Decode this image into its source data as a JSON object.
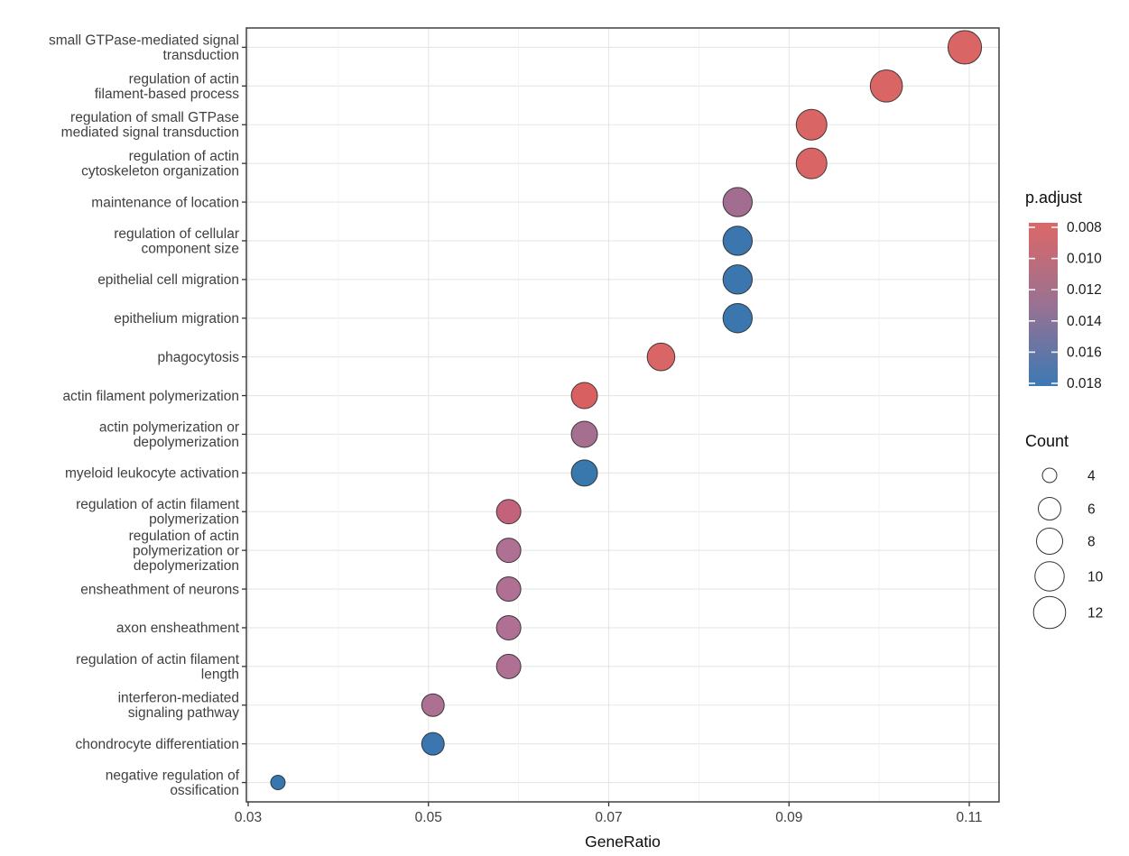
{
  "chart_data": {
    "type": "scatter",
    "title": "",
    "xlabel": "GeneRatio",
    "ylabel": "",
    "grid": true,
    "x_axis": {
      "min": 0.0298,
      "max": 0.1133,
      "major_ticks": [
        0.03,
        0.05,
        0.07,
        0.09,
        0.11
      ],
      "major_tick_labels": [
        "0.03",
        "0.05",
        "0.07",
        "0.09",
        "0.11"
      ],
      "minor_ticks": [
        0.04,
        0.06,
        0.08,
        0.1
      ]
    },
    "points": [
      {
        "category": "small GTPase-mediated signal transduction",
        "label_lines": [
          "small GTPase-mediated signal",
          "transduction"
        ],
        "gene_ratio": 0.1095,
        "count": 13,
        "p_adjust": 0.008,
        "color": "#D96565"
      },
      {
        "category": "regulation of actin filament-based process",
        "label_lines": [
          "regulation of actin",
          "filament-based process"
        ],
        "gene_ratio": 0.1008,
        "count": 12,
        "p_adjust": 0.008,
        "color": "#D96565"
      },
      {
        "category": "regulation of small GTPase mediated signal transduction",
        "label_lines": [
          "regulation of small GTPase",
          "mediated signal transduction"
        ],
        "gene_ratio": 0.0925,
        "count": 11,
        "p_adjust": 0.008,
        "color": "#D96565"
      },
      {
        "category": "regulation of actin cytoskeleton organization",
        "label_lines": [
          "regulation of actin",
          "cytoskeleton organization"
        ],
        "gene_ratio": 0.0925,
        "count": 11,
        "p_adjust": 0.008,
        "color": "#D96565"
      },
      {
        "category": "maintenance of location",
        "label_lines": [
          "maintenance of location"
        ],
        "gene_ratio": 0.0843,
        "count": 10,
        "p_adjust": 0.014,
        "color": "#A26D90"
      },
      {
        "category": "regulation of cellular component size",
        "label_lines": [
          "regulation of cellular",
          "component size"
        ],
        "gene_ratio": 0.0843,
        "count": 10,
        "p_adjust": 0.017,
        "color": "#3B76AF"
      },
      {
        "category": "epithelial cell migration",
        "label_lines": [
          "epithelial cell migration"
        ],
        "gene_ratio": 0.0843,
        "count": 10,
        "p_adjust": 0.017,
        "color": "#3B76AF"
      },
      {
        "category": "epithelium migration",
        "label_lines": [
          "epithelium migration"
        ],
        "gene_ratio": 0.0843,
        "count": 10,
        "p_adjust": 0.017,
        "color": "#3B76AF"
      },
      {
        "category": "phagocytosis",
        "label_lines": [
          "phagocytosis"
        ],
        "gene_ratio": 0.0758,
        "count": 9,
        "p_adjust": 0.009,
        "color": "#D96567"
      },
      {
        "category": "actin filament polymerization",
        "label_lines": [
          "actin filament polymerization"
        ],
        "gene_ratio": 0.0673,
        "count": 8,
        "p_adjust": 0.009,
        "color": "#D96060"
      },
      {
        "category": "actin polymerization or depolymerization",
        "label_lines": [
          "actin polymerization or",
          "depolymerization"
        ],
        "gene_ratio": 0.0673,
        "count": 8,
        "p_adjust": 0.013,
        "color": "#A66F90"
      },
      {
        "category": "myeloid leukocyte activation",
        "label_lines": [
          "myeloid leukocyte activation"
        ],
        "gene_ratio": 0.0673,
        "count": 8,
        "p_adjust": 0.017,
        "color": "#3878AD"
      },
      {
        "category": "regulation of actin filament polymerization",
        "label_lines": [
          "regulation of actin filament",
          "polymerization"
        ],
        "gene_ratio": 0.0589,
        "count": 7,
        "p_adjust": 0.011,
        "color": "#C3637B"
      },
      {
        "category": "regulation of actin polymerization or depolymerization",
        "label_lines": [
          "regulation of actin",
          "polymerization or",
          "depolymerization"
        ],
        "gene_ratio": 0.0589,
        "count": 7,
        "p_adjust": 0.013,
        "color": "#AF7093"
      },
      {
        "category": "ensheathment of neurons",
        "label_lines": [
          "ensheathment of neurons"
        ],
        "gene_ratio": 0.0589,
        "count": 7,
        "p_adjust": 0.013,
        "color": "#AF7093"
      },
      {
        "category": "axon ensheathment",
        "label_lines": [
          "axon ensheathment"
        ],
        "gene_ratio": 0.0589,
        "count": 7,
        "p_adjust": 0.013,
        "color": "#AF7093"
      },
      {
        "category": "regulation of actin filament length",
        "label_lines": [
          "regulation of actin filament",
          "length"
        ],
        "gene_ratio": 0.0589,
        "count": 7,
        "p_adjust": 0.013,
        "color": "#AF7093"
      },
      {
        "category": "interferon-mediated signaling pathway",
        "label_lines": [
          "interferon-mediated",
          "signaling pathway"
        ],
        "gene_ratio": 0.0505,
        "count": 6,
        "p_adjust": 0.013,
        "color": "#AC7093"
      },
      {
        "category": "chondrocyte differentiation",
        "label_lines": [
          "chondrocyte differentiation"
        ],
        "gene_ratio": 0.0505,
        "count": 6,
        "p_adjust": 0.017,
        "color": "#3B76B0"
      },
      {
        "category": "negative regulation of ossification",
        "label_lines": [
          "negative regulation of",
          "ossification"
        ],
        "gene_ratio": 0.0333,
        "count": 4,
        "p_adjust": 0.018,
        "color": "#3777B0"
      }
    ],
    "size_scale": {
      "4": 8,
      "6": 12.5,
      "7": 13.5,
      "8": 14.5,
      "9": 15.3,
      "10": 16.2,
      "11": 17,
      "12": 17.8,
      "13": 18.6
    },
    "legends": {
      "p_adjust": {
        "title": "p.adjust",
        "gradient": [
          "#DC6867",
          "#9A7192",
          "#3C79B4"
        ],
        "ticks": [
          {
            "value": 0.008,
            "label": "0.008"
          },
          {
            "value": 0.01,
            "label": "0.010"
          },
          {
            "value": 0.012,
            "label": "0.012"
          },
          {
            "value": 0.014,
            "label": "0.014"
          },
          {
            "value": 0.016,
            "label": "0.016"
          },
          {
            "value": 0.018,
            "label": "0.018"
          }
        ]
      },
      "count": {
        "title": "Count",
        "items": [
          {
            "count": 4,
            "label": "4"
          },
          {
            "count": 6,
            "label": "6"
          },
          {
            "count": 8,
            "label": "8"
          },
          {
            "count": 10,
            "label": "10"
          },
          {
            "count": 12,
            "label": "12"
          }
        ]
      }
    }
  }
}
